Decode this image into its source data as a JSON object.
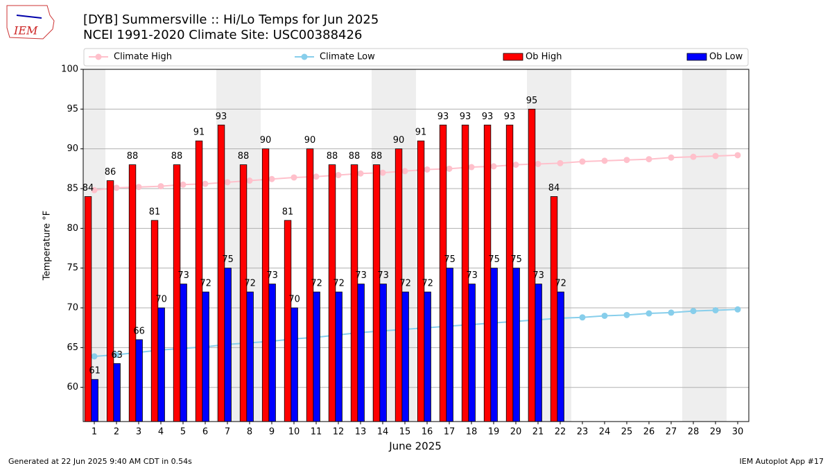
{
  "logo_text": "IEM",
  "footer": {
    "left": "Generated at 22 Jun 2025 9:40 AM CDT in 0.54s",
    "right": "IEM Autoplot App #17"
  },
  "chart_data": {
    "type": "bar",
    "title": "[DYB] Summersville :: Hi/Lo Temps for Jun 2025",
    "subtitle": "NCEI 1991-2020 Climate Site: USC00388426",
    "x_label": "June 2025",
    "y_label": "Temperature °F",
    "x": [
      1,
      2,
      3,
      4,
      5,
      6,
      7,
      8,
      9,
      10,
      11,
      12,
      13,
      14,
      15,
      16,
      17,
      18,
      19,
      20,
      21,
      22,
      23,
      24,
      25,
      26,
      27,
      28,
      29,
      30
    ],
    "xlim": [
      0.5,
      30.5
    ],
    "xticks": [
      1,
      2,
      3,
      4,
      5,
      6,
      7,
      8,
      9,
      10,
      11,
      12,
      13,
      14,
      15,
      16,
      17,
      18,
      19,
      20,
      21,
      22,
      23,
      24,
      25,
      26,
      27,
      28,
      29,
      30
    ],
    "ylim": [
      55.7,
      100
    ],
    "yticks": [
      60,
      65,
      70,
      75,
      80,
      85,
      90,
      95,
      100
    ],
    "grid": true,
    "shaded_days": [
      1,
      7,
      8,
      14,
      15,
      21,
      22,
      28,
      29
    ],
    "series": [
      {
        "name": "Climate High",
        "type": "line",
        "color": "#ffc0cb",
        "values": [
          84.8,
          85.1,
          85.2,
          85.3,
          85.5,
          85.6,
          85.8,
          86.0,
          86.2,
          86.4,
          86.5,
          86.7,
          86.9,
          87.0,
          87.2,
          87.4,
          87.5,
          87.7,
          87.8,
          88.0,
          88.1,
          88.2,
          88.4,
          88.5,
          88.6,
          88.7,
          88.9,
          89.0,
          89.1,
          89.2
        ]
      },
      {
        "name": "Climate Low",
        "type": "line",
        "color": "#87ceeb",
        "values": [
          63.9,
          64.1,
          64.4,
          64.7,
          64.9,
          65.1,
          65.4,
          65.6,
          65.8,
          66.1,
          66.3,
          66.6,
          66.9,
          67.1,
          67.3,
          67.5,
          67.7,
          67.9,
          68.1,
          68.3,
          68.5,
          68.7,
          68.8,
          69.0,
          69.1,
          69.3,
          69.4,
          69.6,
          69.7,
          69.8
        ]
      },
      {
        "name": "Ob High",
        "type": "bar",
        "color": "#ff0000",
        "values": [
          84,
          86,
          88,
          81,
          88,
          91,
          93,
          88,
          90,
          81,
          90,
          88,
          88,
          88,
          90,
          91,
          93,
          93,
          93,
          93,
          95,
          84,
          null,
          null,
          null,
          null,
          null,
          null,
          null,
          null
        ]
      },
      {
        "name": "Ob Low",
        "type": "bar",
        "color": "#0000ff",
        "values": [
          61,
          63,
          66,
          70,
          73,
          72,
          75,
          72,
          73,
          70,
          72,
          72,
          73,
          73,
          72,
          72,
          75,
          73,
          75,
          75,
          73,
          72,
          null,
          null,
          null,
          null,
          null,
          null,
          null,
          null
        ]
      }
    ]
  }
}
